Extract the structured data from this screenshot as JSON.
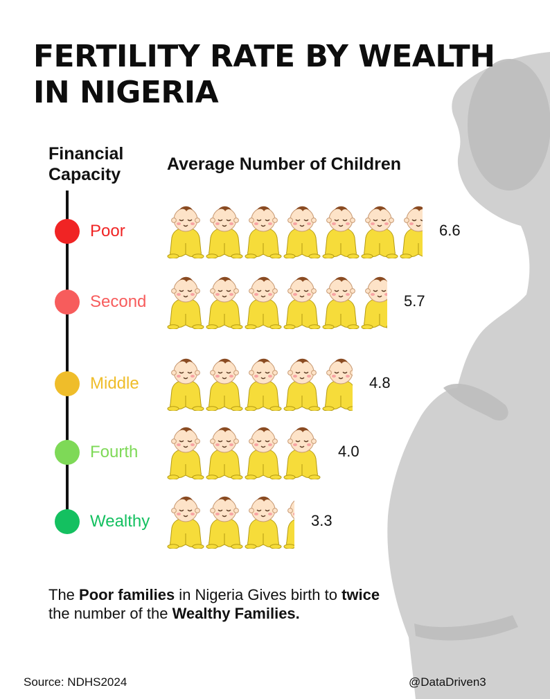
{
  "title": "FERTILITY RATE BY WEALTH IN NIGERIA",
  "axis": {
    "left_label": "Financial Capacity",
    "top_label": "Average Number of Children"
  },
  "chart_data": {
    "type": "bar",
    "title": "FERTILITY RATE BY WEALTH IN NIGERIA",
    "xlabel": "Average Number of Children",
    "ylabel": "Financial Capacity",
    "categories": [
      "Poor",
      "Second",
      "Middle",
      "Fourth",
      "Wealthy"
    ],
    "values": [
      6.6,
      5.7,
      4.8,
      4.0,
      3.3
    ],
    "value_labels": [
      "6.6",
      "5.7",
      "4.8",
      "4.0",
      "3.3"
    ],
    "colors": [
      "#f02424",
      "#f75c5c",
      "#efbd2a",
      "#7ed957",
      "#14c060"
    ],
    "icon": "baby-icon"
  },
  "note": {
    "p1": "The ",
    "b1": "Poor families",
    "p2": " in Nigeria Gives birth to ",
    "b2": "twice",
    "p3": " the number of the ",
    "b3": "Wealthy Families."
  },
  "footer": {
    "source": "Source: NDHS2024",
    "handle": "@DataDriven3"
  },
  "decor": {
    "silhouette": "pregnant-woman-silhouette",
    "silhouette_color": "#cfcfcf"
  }
}
